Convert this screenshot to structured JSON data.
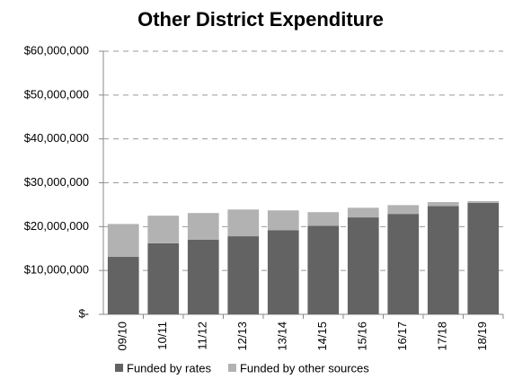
{
  "chart_data": {
    "type": "stacked_bar",
    "title": "Other District Expenditure",
    "categories": [
      "09/10",
      "10/11",
      "11/12",
      "12/13",
      "13/14",
      "14/15",
      "15/16",
      "16/17",
      "17/18",
      "18/19"
    ],
    "series": [
      {
        "name": "Funded by rates",
        "color": "#636363",
        "values": [
          13100000,
          16200000,
          17000000,
          17800000,
          19200000,
          20200000,
          22100000,
          22900000,
          24700000,
          25400000
        ]
      },
      {
        "name": "Funded by other sources",
        "color": "#b2b2b2",
        "values": [
          7500000,
          6300000,
          6100000,
          6100000,
          4500000,
          3100000,
          2200000,
          2000000,
          900000,
          400000
        ]
      }
    ],
    "ylim": [
      0,
      60000000
    ],
    "yticks": [
      {
        "value": 0,
        "label": "$-"
      },
      {
        "value": 10000000,
        "label": "$10,000,000"
      },
      {
        "value": 20000000,
        "label": "$20,000,000"
      },
      {
        "value": 30000000,
        "label": "$30,000,000"
      },
      {
        "value": 40000000,
        "label": "$40,000,000"
      },
      {
        "value": 50000000,
        "label": "$50,000,000"
      },
      {
        "value": 60000000,
        "label": "$60,000,000"
      }
    ],
    "grid": true,
    "legend": "bottom"
  }
}
